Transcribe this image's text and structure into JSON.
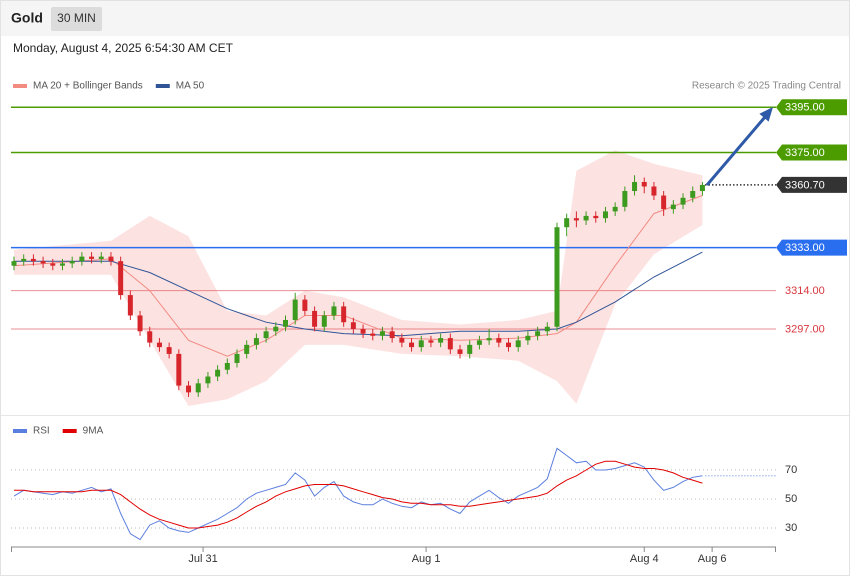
{
  "header": {
    "title": "Gold",
    "timeframe": "30 MIN",
    "datetime": "Monday, August 4, 2025 6:54:30 AM CET",
    "credit": "Research © 2025 Trading Central"
  },
  "chart_data": [
    {
      "type": "candlestick",
      "open": [
        3325,
        3327,
        3328,
        3327,
        3326,
        3325,
        3326,
        3327,
        3329,
        3328,
        3329,
        3327,
        3312,
        3303,
        3296,
        3291,
        3289,
        3286,
        3272,
        3269,
        3273,
        3276,
        3279,
        3282,
        3286,
        3290,
        3293,
        3296,
        3298,
        3301,
        3310,
        3305,
        3298,
        3303,
        3307,
        3300,
        3297,
        3295,
        3294,
        3296,
        3293,
        3291,
        3289,
        3292,
        3291,
        3293,
        3288,
        3286,
        3290,
        3292,
        3293,
        3291,
        3289,
        3292,
        3294,
        3296,
        3298,
        3342,
        3346,
        3345,
        3347,
        3346,
        3349,
        3351,
        3358,
        3362,
        3360,
        3356,
        3350,
        3352,
        3355,
        3358
      ],
      "high": [
        3329,
        3330,
        3330,
        3329,
        3328,
        3328,
        3329,
        3331,
        3331,
        3331,
        3331,
        3329,
        3314,
        3305,
        3298,
        3293,
        3291,
        3288,
        3274,
        3275,
        3278,
        3281,
        3284,
        3288,
        3292,
        3295,
        3298,
        3300,
        3303,
        3313,
        3312,
        3307,
        3305,
        3309,
        3309,
        3302,
        3299,
        3297,
        3298,
        3298,
        3295,
        3293,
        3294,
        3294,
        3295,
        3295,
        3290,
        3292,
        3294,
        3297,
        3295,
        3293,
        3294,
        3296,
        3298,
        3300,
        3344,
        3348,
        3349,
        3349,
        3349,
        3351,
        3353,
        3360,
        3365,
        3364,
        3362,
        3358,
        3354,
        3357,
        3360,
        3362
      ],
      "low": [
        3323,
        3325,
        3325,
        3324,
        3323,
        3323,
        3324,
        3325,
        3326,
        3326,
        3325,
        3310,
        3301,
        3294,
        3289,
        3287,
        3284,
        3270,
        3267,
        3267,
        3271,
        3274,
        3277,
        3280,
        3284,
        3288,
        3291,
        3294,
        3296,
        3299,
        3303,
        3296,
        3296,
        3301,
        3298,
        3295,
        3293,
        3292,
        3292,
        3291,
        3289,
        3287,
        3287,
        3289,
        3289,
        3286,
        3284,
        3284,
        3288,
        3290,
        3289,
        3287,
        3287,
        3290,
        3292,
        3294,
        3296,
        3338,
        3342,
        3343,
        3344,
        3344,
        3347,
        3349,
        3356,
        3357,
        3354,
        3347,
        3348,
        3350,
        3353,
        3356
      ],
      "close": [
        3327,
        3328,
        3327,
        3326,
        3325,
        3326,
        3327,
        3329,
        3328,
        3329,
        3327,
        3312,
        3303,
        3296,
        3291,
        3289,
        3286,
        3272,
        3269,
        3273,
        3276,
        3279,
        3282,
        3286,
        3290,
        3293,
        3296,
        3298,
        3301,
        3310,
        3305,
        3298,
        3303,
        3307,
        3300,
        3297,
        3295,
        3294,
        3296,
        3293,
        3291,
        3289,
        3292,
        3291,
        3293,
        3288,
        3286,
        3290,
        3292,
        3293,
        3291,
        3289,
        3292,
        3294,
        3296,
        3298,
        3342,
        3346,
        3345,
        3347,
        3346,
        3349,
        3351,
        3358,
        3362,
        3360,
        3356,
        3350,
        3352,
        3355,
        3358,
        3360.7
      ],
      "up_color": "#3c9a1e",
      "down_color": "#d7262b",
      "series": [
        {
          "name": "MA 20 + Bollinger Bands",
          "color": "#f28b82",
          "band_color": "#fde2e2",
          "x": [
            0,
            10,
            14,
            18,
            22,
            26,
            30,
            34,
            40,
            46,
            52,
            56,
            58,
            62,
            66,
            71
          ],
          "values": [
            3325,
            3328,
            3314,
            3292,
            3285,
            3292,
            3303,
            3303,
            3293,
            3292,
            3293,
            3295,
            3300,
            3325,
            3348,
            3356
          ],
          "upper": [
            3332,
            3336,
            3347,
            3338,
            3305,
            3303,
            3314,
            3311,
            3301,
            3299,
            3301,
            3305,
            3367,
            3376,
            3370,
            3365
          ],
          "lower": [
            3321,
            3321,
            3292,
            3263,
            3266,
            3274,
            3290,
            3290,
            3286,
            3285,
            3283,
            3274,
            3264,
            3308,
            3330,
            3343
          ]
        },
        {
          "name": "MA 50",
          "color": "#2f5597",
          "x": [
            0,
            10,
            14,
            18,
            22,
            26,
            30,
            34,
            40,
            46,
            52,
            56,
            58,
            62,
            66,
            71
          ],
          "values": [
            3327,
            3327,
            3322,
            3314,
            3306,
            3300,
            3297,
            3295,
            3294,
            3296,
            3296,
            3297,
            3300,
            3309,
            3320,
            3331
          ]
        }
      ],
      "levels": [
        {
          "value": 3395,
          "label": "3395.00",
          "color": "#4c9c00",
          "line": "solid",
          "boxed": true
        },
        {
          "value": 3375,
          "label": "3375.00",
          "color": "#4c9c00",
          "line": "solid",
          "boxed": true
        },
        {
          "value": 3360.7,
          "label": "3360.70",
          "color": "#333333",
          "line": "dotted",
          "boxed": true
        },
        {
          "value": 3333,
          "label": "3333.00",
          "color": "#2a6ef0",
          "line": "solid",
          "boxed": true
        },
        {
          "value": 3314,
          "label": "3314.00",
          "color": "#d9363e",
          "line": "solid",
          "boxed": false
        },
        {
          "value": 3297,
          "label": "3297.00",
          "color": "#d9363e",
          "line": "solid",
          "boxed": false
        }
      ],
      "xlim": [
        0,
        79
      ],
      "ylim": [
        3259,
        3400
      ]
    },
    {
      "type": "line",
      "series": [
        {
          "name": "RSI",
          "color": "#5b7fde",
          "values": [
            52,
            56,
            55,
            54,
            53,
            55,
            54,
            56,
            58,
            55,
            57,
            40,
            26,
            22,
            32,
            35,
            30,
            28,
            27,
            30,
            33,
            36,
            40,
            44,
            50,
            54,
            56,
            58,
            60,
            68,
            63,
            52,
            58,
            62,
            52,
            48,
            46,
            46,
            50,
            47,
            45,
            44,
            48,
            46,
            47,
            43,
            40,
            48,
            52,
            56,
            51,
            47,
            52,
            55,
            58,
            64,
            85,
            80,
            75,
            76,
            70,
            70,
            71,
            73,
            75,
            72,
            63,
            56,
            58,
            62,
            65,
            66
          ]
        },
        {
          "name": "9MA",
          "color": "#e00000",
          "values": [
            56,
            56,
            55,
            55,
            55,
            55,
            55,
            55,
            56,
            56,
            56,
            53,
            48,
            43,
            39,
            36,
            34,
            32,
            30,
            30,
            31,
            32,
            34,
            37,
            41,
            45,
            48,
            52,
            55,
            57,
            59,
            60,
            60,
            60,
            59,
            57,
            55,
            53,
            51,
            50,
            48,
            47,
            47,
            46,
            46,
            46,
            45,
            45,
            46,
            47,
            48,
            49,
            50,
            51,
            52,
            54,
            59,
            63,
            66,
            70,
            74,
            76,
            76,
            74,
            72,
            71,
            71,
            70,
            68,
            65,
            63,
            61
          ]
        }
      ],
      "xlim": [
        0,
        79
      ],
      "ylim": [
        18,
        90
      ],
      "yticks": [
        30,
        50,
        70
      ],
      "grid": true,
      "xticks": [
        {
          "value": 19.5,
          "label": "Jul 31"
        },
        {
          "value": 42.5,
          "label": "Aug 1"
        },
        {
          "value": 65,
          "label": "Aug 4"
        },
        {
          "value": 72,
          "label": "Aug 6"
        }
      ]
    }
  ]
}
